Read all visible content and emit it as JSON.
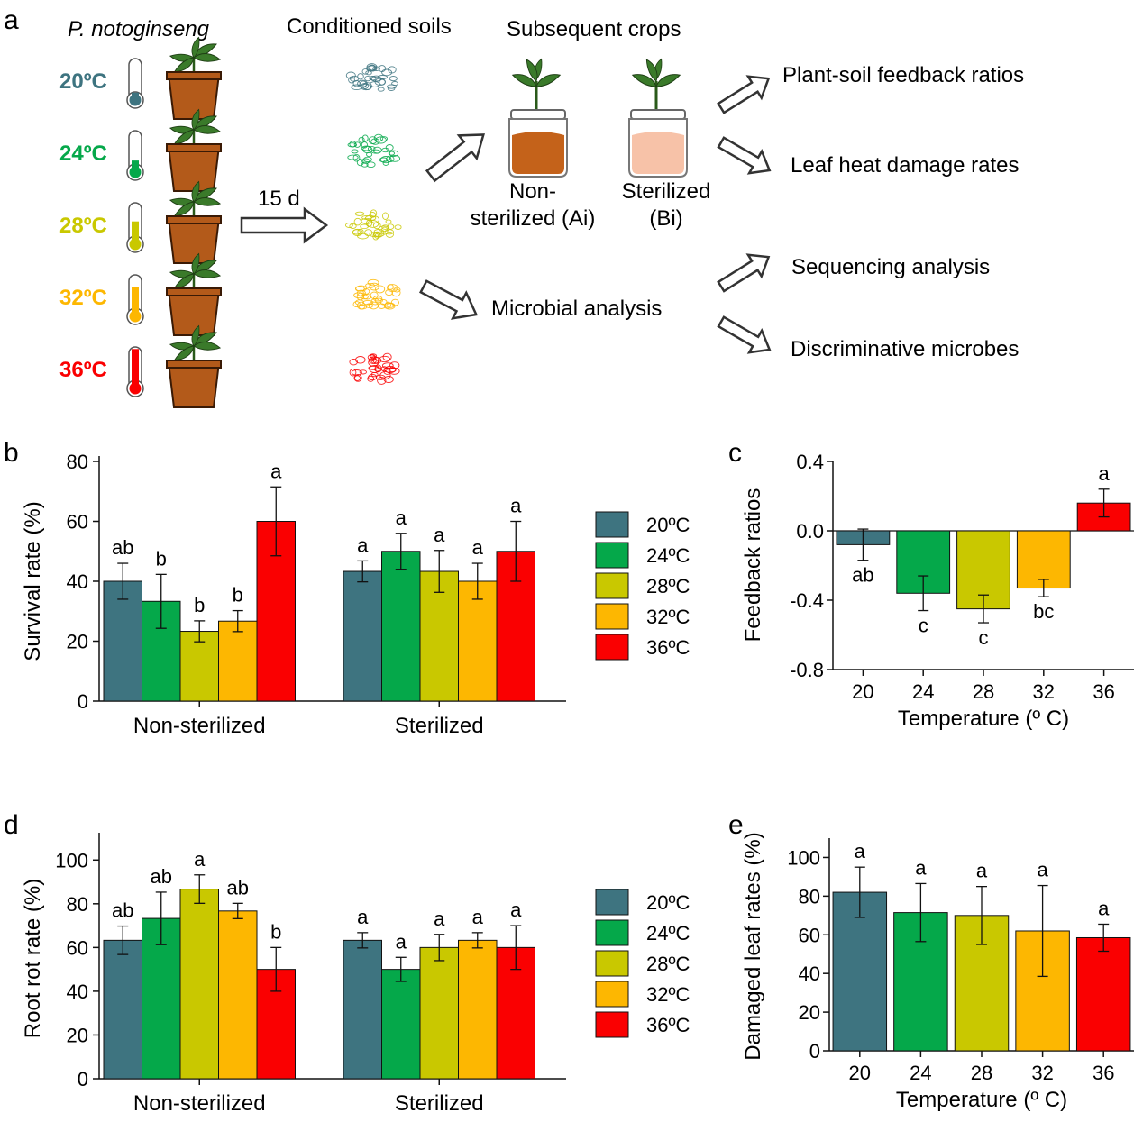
{
  "colors": {
    "t20": "#3e7480",
    "t24": "#05a84a",
    "t28": "#c9c800",
    "t32": "#fdb701",
    "t36": "#fa0001",
    "soil_dark": "#c4621a",
    "soil_light": "#f7c2a8",
    "pot": "#b35a1a",
    "leaf": "#3a7a2a"
  },
  "panel_a": {
    "label": "a",
    "plant_title": "P. notoginseng",
    "conditioned_title": "Conditioned soils",
    "subsequent_title": "Subsequent crops",
    "temps": [
      "20ºC",
      "24ºC",
      "28ºC",
      "32ºC",
      "36ºC"
    ],
    "days": "15 d",
    "nonsterilized_line1": "Non-",
    "nonsterilized_line2": "sterilized (Ai)",
    "sterilized_line1": "Sterilized",
    "sterilized_line2": "(Bi)",
    "microbial": "Microbial analysis",
    "outputs": [
      "Plant-soil feedback ratios",
      "Leaf heat damage rates",
      "Sequencing analysis",
      "Discriminative microbes"
    ],
    "icons": [
      "thermometer-icon",
      "potted-plant-icon",
      "soil-icon",
      "jar-plant-icon",
      "arrow-icon"
    ]
  },
  "chart_data": [
    {
      "panel": "b",
      "type": "bar",
      "ylabel": "Survival rate (%)",
      "ylim": [
        0,
        80
      ],
      "yticks": [
        0,
        20,
        40,
        60,
        80
      ],
      "groups": [
        "Non-sterilized",
        "Sterilized"
      ],
      "legend": [
        "20ºC",
        "24ºC",
        "28ºC",
        "32ºC",
        "36ºC"
      ],
      "series": [
        {
          "name": "20ºC",
          "values": [
            40,
            43.3
          ],
          "errors": [
            6,
            3.5
          ],
          "letters": [
            "ab",
            "a"
          ]
        },
        {
          "name": "24ºC",
          "values": [
            33.3,
            50
          ],
          "errors": [
            9,
            6
          ],
          "letters": [
            "b",
            "a"
          ]
        },
        {
          "name": "28ºC",
          "values": [
            23.3,
            43.3
          ],
          "errors": [
            3.5,
            7
          ],
          "letters": [
            "b",
            "a"
          ]
        },
        {
          "name": "32ºC",
          "values": [
            26.7,
            40
          ],
          "errors": [
            3.5,
            6
          ],
          "letters": [
            "b",
            "a"
          ]
        },
        {
          "name": "36ºC",
          "values": [
            60,
            50
          ],
          "errors": [
            11.5,
            10
          ],
          "letters": [
            "a",
            "a"
          ]
        }
      ]
    },
    {
      "panel": "c",
      "type": "bar",
      "xlabel": "Temperature (º C)",
      "ylabel": "Feedback ratios",
      "ylim": [
        -0.8,
        0.4
      ],
      "yticks": [
        "-0.8",
        "-0.4",
        "0.0",
        "0.4"
      ],
      "categories": [
        "20",
        "24",
        "28",
        "32",
        "36"
      ],
      "values": [
        -0.08,
        -0.36,
        -0.45,
        -0.33,
        0.16
      ],
      "errors": [
        0.09,
        0.1,
        0.08,
        0.05,
        0.08
      ],
      "letters": [
        "ab",
        "c",
        "c",
        "bc",
        "a"
      ]
    },
    {
      "panel": "d",
      "type": "bar",
      "ylabel": "Root rot rate (%)",
      "ylim": [
        0,
        110
      ],
      "yticks": [
        0,
        20,
        40,
        60,
        80,
        100
      ],
      "groups": [
        "Non-sterilized",
        "Sterilized"
      ],
      "legend": [
        "20ºC",
        "24ºC",
        "28ºC",
        "32ºC",
        "36ºC"
      ],
      "series": [
        {
          "name": "20ºC",
          "values": [
            63.3,
            63.3
          ],
          "errors": [
            6.5,
            3.5
          ],
          "letters": [
            "ab",
            "a"
          ]
        },
        {
          "name": "24ºC",
          "values": [
            73.3,
            50
          ],
          "errors": [
            12,
            5.5
          ],
          "letters": [
            "ab",
            "a"
          ]
        },
        {
          "name": "28ºC",
          "values": [
            86.7,
            60
          ],
          "errors": [
            6.5,
            6
          ],
          "letters": [
            "a",
            "a"
          ]
        },
        {
          "name": "32ºC",
          "values": [
            76.7,
            63.3
          ],
          "errors": [
            3.5,
            3.5
          ],
          "letters": [
            "ab",
            "a"
          ]
        },
        {
          "name": "36ºC",
          "values": [
            50,
            60
          ],
          "errors": [
            10,
            10
          ],
          "letters": [
            "b",
            "a"
          ]
        }
      ]
    },
    {
      "panel": "e",
      "type": "bar",
      "xlabel": "Temperature (º C)",
      "ylabel": "Damaged leaf rates (%)",
      "ylim": [
        0,
        110
      ],
      "yticks": [
        0,
        20,
        40,
        60,
        80,
        100
      ],
      "categories": [
        "20",
        "24",
        "28",
        "32",
        "36"
      ],
      "values": [
        82,
        71.5,
        70,
        62,
        58.5
      ],
      "errors": [
        13,
        15,
        15,
        23.5,
        7
      ],
      "letters": [
        "a",
        "a",
        "a",
        "a",
        "a"
      ]
    }
  ]
}
